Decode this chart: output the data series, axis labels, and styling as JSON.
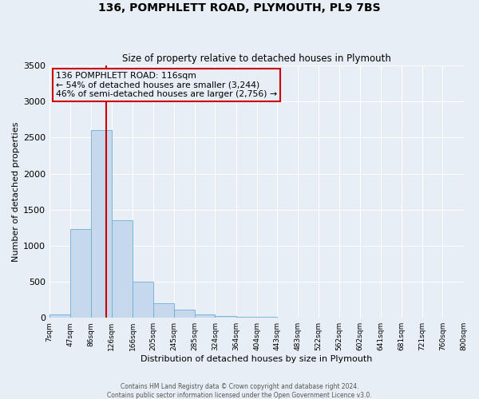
{
  "title": "136, POMPHLETT ROAD, PLYMOUTH, PL9 7BS",
  "subtitle": "Size of property relative to detached houses in Plymouth",
  "xlabel": "Distribution of detached houses by size in Plymouth",
  "ylabel": "Number of detached properties",
  "bin_labels": [
    "7sqm",
    "47sqm",
    "86sqm",
    "126sqm",
    "166sqm",
    "205sqm",
    "245sqm",
    "285sqm",
    "324sqm",
    "364sqm",
    "404sqm",
    "443sqm",
    "483sqm",
    "522sqm",
    "562sqm",
    "602sqm",
    "641sqm",
    "681sqm",
    "721sqm",
    "760sqm",
    "800sqm"
  ],
  "bin_edges": [
    7,
    47,
    86,
    126,
    166,
    205,
    245,
    285,
    324,
    364,
    404,
    443,
    483,
    522,
    562,
    602,
    641,
    681,
    721,
    760,
    800
  ],
  "bar_heights": [
    50,
    1230,
    2600,
    1350,
    500,
    200,
    110,
    50,
    25,
    15,
    10,
    0,
    0,
    0,
    0,
    0,
    0,
    0,
    0,
    0
  ],
  "bar_color": "#c5d8ec",
  "bar_edgecolor": "#6baed6",
  "vline_color": "#cc0000",
  "vline_x": 116,
  "ylim": [
    0,
    3500
  ],
  "yticks": [
    0,
    500,
    1000,
    1500,
    2000,
    2500,
    3000,
    3500
  ],
  "annotation_title": "136 POMPHLETT ROAD: 116sqm",
  "annotation_line1": "← 54% of detached houses are smaller (3,244)",
  "annotation_line2": "46% of semi-detached houses are larger (2,756) →",
  "annotation_box_color": "#cc0000",
  "footer_line1": "Contains HM Land Registry data © Crown copyright and database right 2024.",
  "footer_line2": "Contains public sector information licensed under the Open Government Licence v3.0.",
  "background_color": "#e8eef5",
  "plot_bg_color": "#e8eef5",
  "grid_color": "#ffffff"
}
